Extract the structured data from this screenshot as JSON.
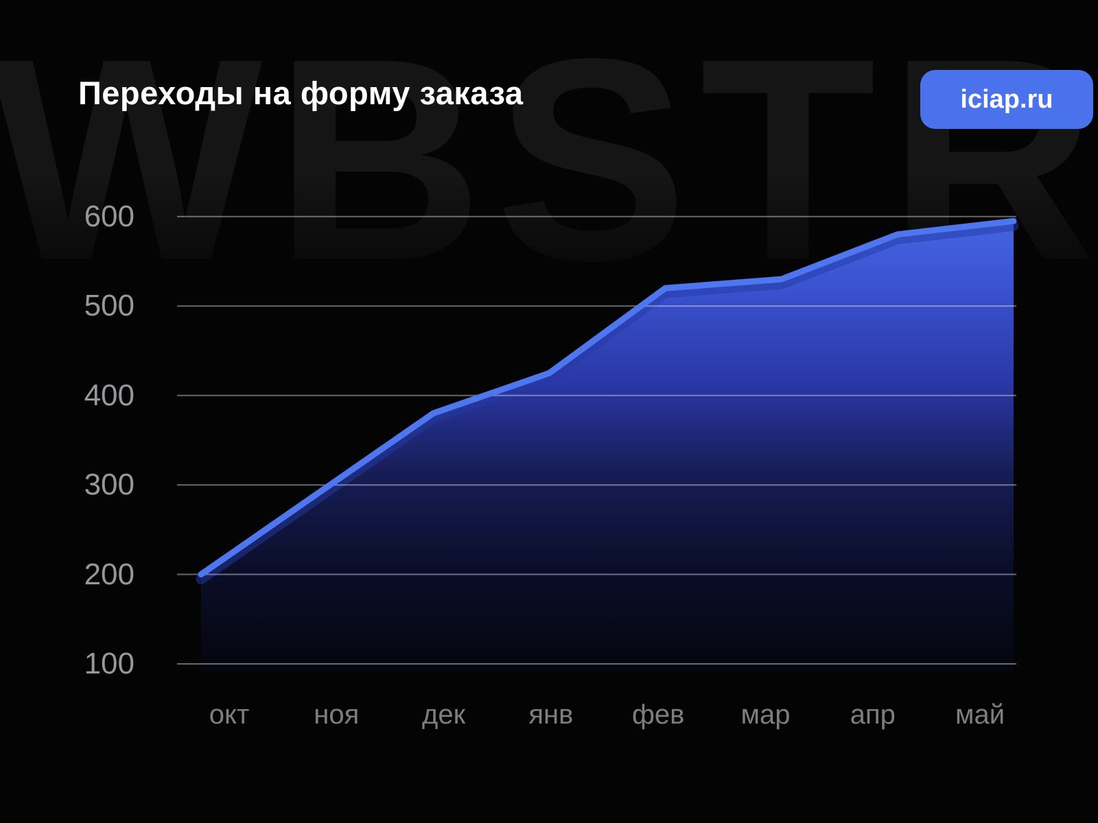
{
  "header": {
    "title": "Переходы на форму заказа",
    "badge": "iciap.ru",
    "badge_color": "#4a72ec"
  },
  "watermark": "WBSTR",
  "chart_data": {
    "type": "area",
    "title": "Переходы на форму заказа",
    "categories": [
      "окт",
      "ноя",
      "дек",
      "янв",
      "фев",
      "мар",
      "апр",
      "май"
    ],
    "values": [
      200,
      290,
      380,
      425,
      520,
      530,
      580,
      595
    ],
    "yticks": [
      600,
      500,
      400,
      300,
      200,
      100
    ],
    "ylim": [
      100,
      600
    ],
    "xlabel": "",
    "ylabel": "",
    "grid": "horizontal-only",
    "legend": "none",
    "line_color": "#4e76ee",
    "line_shadow_color": "#2339a6",
    "fill_gradient_top": "#4565e4",
    "fill_gradient_bottom": "#04050d",
    "gridline_color": "rgba(255,255,255,0.40)",
    "axis_label_color": "#98989c",
    "background_color": "#040404"
  }
}
